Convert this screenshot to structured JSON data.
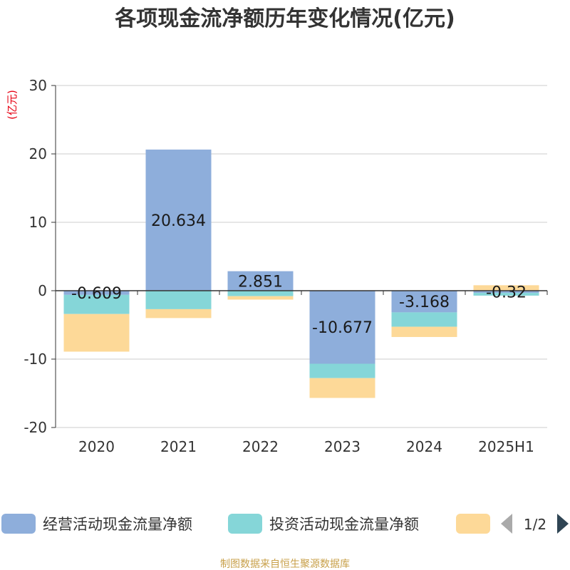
{
  "chart_data": {
    "type": "bar",
    "stacked": true,
    "title": "各项现金流净额历年变化情况(亿元)",
    "unit_label": "(亿元)",
    "categories": [
      "2020",
      "2021",
      "2022",
      "2023",
      "2024",
      "2025H1"
    ],
    "ylim": [
      -20,
      30
    ],
    "yticks": [
      30,
      20,
      10,
      0,
      -10,
      -20
    ],
    "grid": true,
    "series": [
      {
        "name": "经营活动现金流量净额",
        "color": "#8eaedb",
        "values": [
          -0.609,
          20.634,
          2.851,
          -10.677,
          -3.168,
          -0.32
        ],
        "labels": [
          "-0.609",
          "20.634",
          "2.851",
          "-10.677",
          "-3.168",
          "-0.32"
        ]
      },
      {
        "name": "投资活动现金流量净额",
        "color": "#85d6d8",
        "values": [
          -2.8,
          -2.7,
          -0.8,
          -2.1,
          -2.1,
          -0.4
        ]
      },
      {
        "name": "",
        "color": "#fdd998",
        "values": [
          -5.5,
          -1.3,
          -0.5,
          -2.9,
          -1.5,
          0.8
        ]
      }
    ],
    "legend": {
      "placement": "bottom",
      "page": "1/2"
    },
    "source": "制图数据来自恒生聚源数据库"
  }
}
